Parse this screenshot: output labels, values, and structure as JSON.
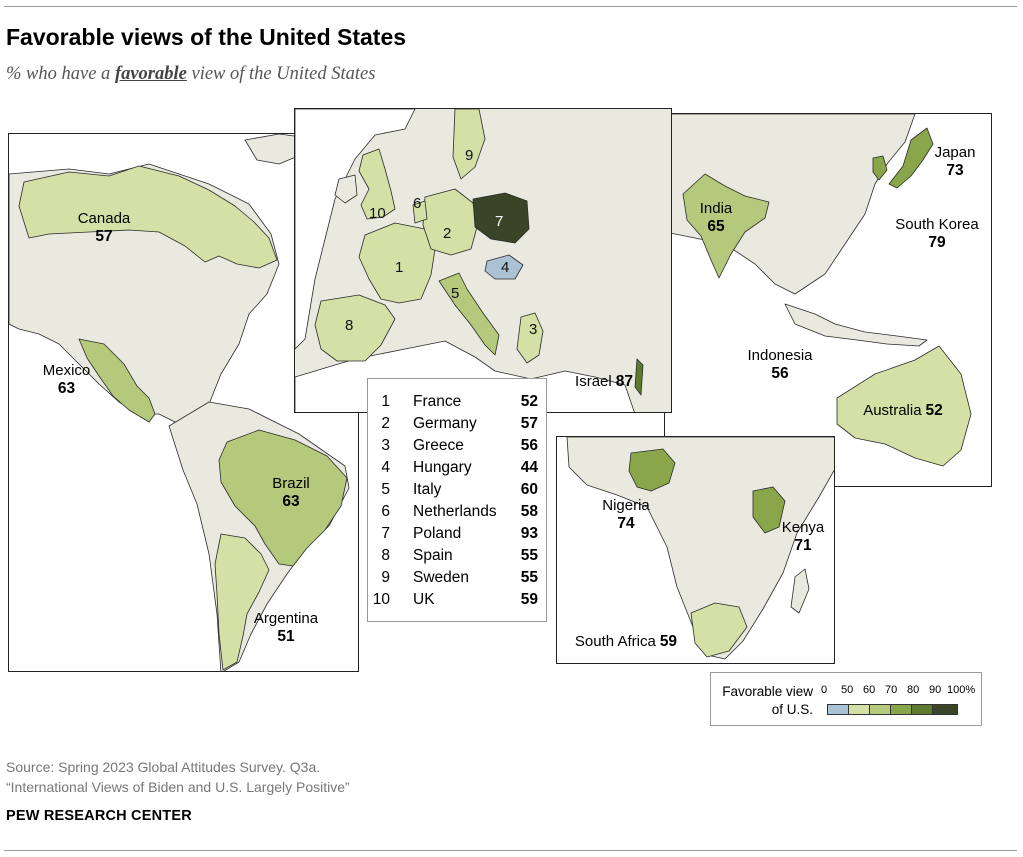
{
  "title": "Favorable views of the United States",
  "subtitle_pre": "% who have a ",
  "subtitle_em": "favorable",
  "subtitle_post": " view of the United States",
  "colors": {
    "water": "#ffffff",
    "no_data": "#e9e9e0",
    "border": "#2a2a2a",
    "bin_0_50": "#a9c2d6",
    "bin_50_60": "#d4e0a6",
    "bin_60_70": "#b4c97c",
    "bin_70_80": "#8aa64a",
    "bin_80_90": "#5f7a2e",
    "bin_90_100": "#3a4527"
  },
  "countries": {
    "canada": {
      "name": "Canada",
      "value": "57"
    },
    "mexico": {
      "name": "Mexico",
      "value": "63"
    },
    "brazil": {
      "name": "Brazil",
      "value": "63"
    },
    "argentina": {
      "name": "Argentina",
      "value": "51"
    },
    "israel": {
      "name": "Israel",
      "value": "87"
    },
    "india": {
      "name": "India",
      "value": "65"
    },
    "japan": {
      "name": "Japan",
      "value": "73"
    },
    "south_korea": {
      "name": "South Korea",
      "value": "79"
    },
    "indonesia": {
      "name": "Indonesia",
      "value": "56"
    },
    "australia": {
      "name": "Australia",
      "value": "52"
    },
    "nigeria": {
      "name": "Nigeria",
      "value": "74"
    },
    "kenya": {
      "name": "Kenya",
      "value": "71"
    },
    "south_africa": {
      "name": "South Africa",
      "value": "59"
    }
  },
  "europe_key": [
    {
      "index": "1",
      "name": "France",
      "value": "52"
    },
    {
      "index": "2",
      "name": "Germany",
      "value": "57"
    },
    {
      "index": "3",
      "name": "Greece",
      "value": "56"
    },
    {
      "index": "4",
      "name": "Hungary",
      "value": "44"
    },
    {
      "index": "5",
      "name": "Italy",
      "value": "60"
    },
    {
      "index": "6",
      "name": "Netherlands",
      "value": "58"
    },
    {
      "index": "7",
      "name": "Poland",
      "value": "93"
    },
    {
      "index": "8",
      "name": "Spain",
      "value": "55"
    },
    {
      "index": "9",
      "name": "Sweden",
      "value": "55"
    },
    {
      "index": "10",
      "name": "UK",
      "value": "59"
    }
  ],
  "legend": {
    "title_line1": "Favorable view",
    "title_line2": "of U.S.",
    "ticks": [
      "0",
      "50",
      "60",
      "70",
      "80",
      "90",
      "100%"
    ]
  },
  "source_line1": "Source: Spring 2023 Global Attitudes Survey. Q3a.",
  "source_line2": "“International Views of Biden and U.S. Largely Positive”",
  "brand": "PEW RESEARCH CENTER"
}
